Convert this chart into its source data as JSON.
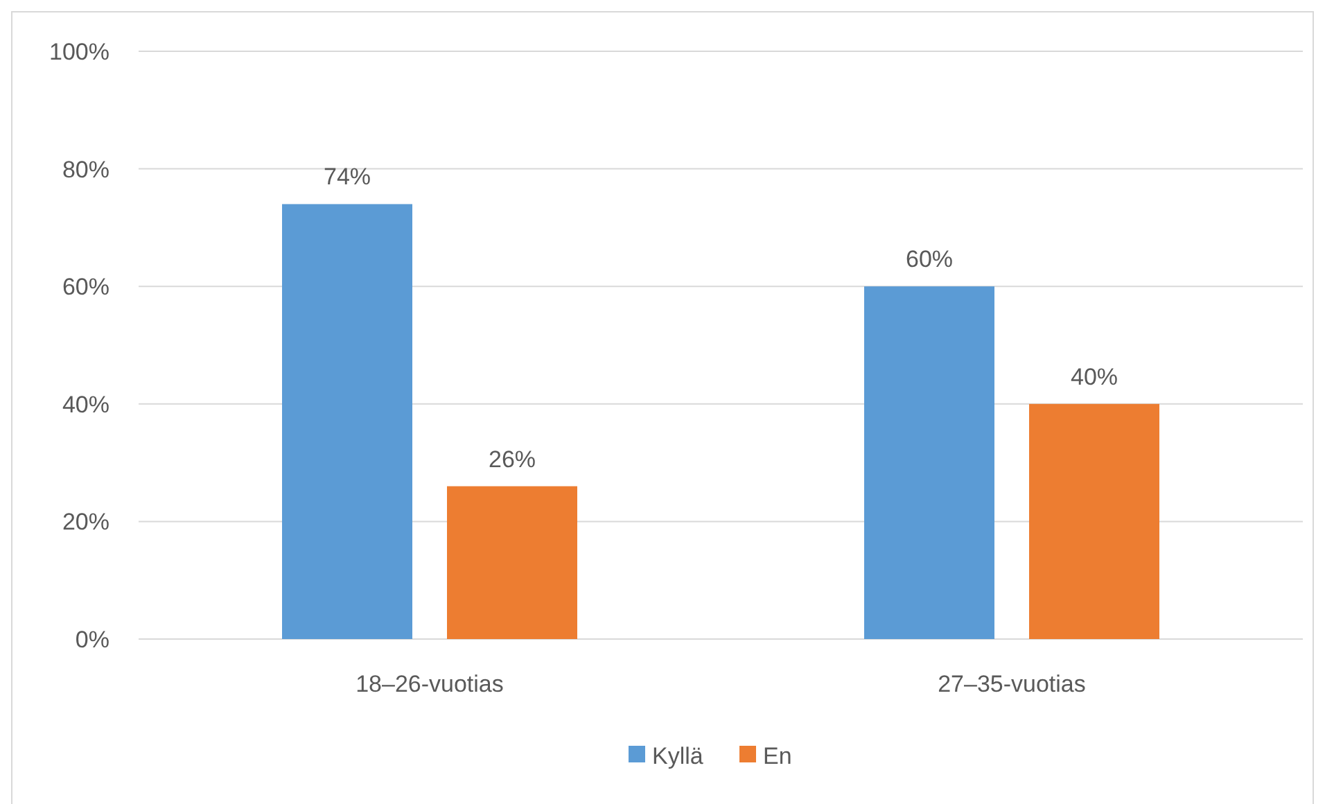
{
  "chart_data": {
    "type": "bar",
    "categories": [
      "18–26-vuotias",
      "27–35-vuotias"
    ],
    "series": [
      {
        "name": "Kyllä",
        "color": "#5b9bd5",
        "values": [
          74,
          60
        ],
        "value_labels": [
          "74%",
          "60%"
        ]
      },
      {
        "name": "En",
        "color": "#ed7d31",
        "values": [
          26,
          40
        ],
        "value_labels": [
          "26%",
          "40%"
        ]
      }
    ],
    "ylim": [
      0,
      100
    ],
    "yticks": [
      {
        "value": 0,
        "label": "0%"
      },
      {
        "value": 20,
        "label": "20%"
      },
      {
        "value": 40,
        "label": "40%"
      },
      {
        "value": 60,
        "label": "60%"
      },
      {
        "value": 80,
        "label": "80%"
      },
      {
        "value": 100,
        "label": "100%"
      }
    ],
    "grid": "y",
    "legend": "bottom"
  }
}
